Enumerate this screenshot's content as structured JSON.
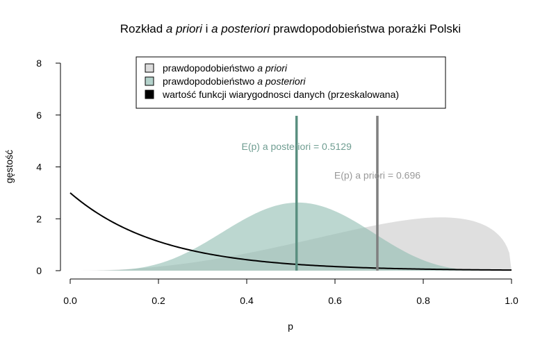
{
  "chart_data": {
    "type": "area",
    "title": {
      "part1": "Rozkład ",
      "part2": "a priori",
      "part3": " i ",
      "part4": "a posteriori",
      "part5": " prawdopodobieństwa porażki Polski"
    },
    "xlabel": "p",
    "ylabel": "gęstość",
    "xlim": [
      0,
      1
    ],
    "ylim": [
      0,
      8
    ],
    "xticks": [
      "0.0",
      "0.2",
      "0.4",
      "0.6",
      "0.8",
      "1.0"
    ],
    "yticks": [
      "0",
      "2",
      "4",
      "6",
      "8"
    ],
    "legend": {
      "placement": "top-center",
      "items": [
        {
          "text_plain": "prawdopodobieństwo ",
          "text_italic": "a priori",
          "color": "#dcdcdc"
        },
        {
          "text_plain": "prawdopodobieństwo ",
          "text_italic": "a posteriori",
          "color": "#b4d2cb"
        },
        {
          "text_plain": "wartość funkcji wiarygodnosci danych (przeskalowana)",
          "text_italic": "",
          "color": "#000000"
        }
      ]
    },
    "series": [
      {
        "distribution": "beta",
        "alpha": 3.28,
        "beta": 1.43,
        "fill": "#d9d9d9",
        "opacity": 0.85
      },
      {
        "distribution": "beta",
        "alpha": 5.8,
        "beta": 5.5,
        "fill": "#8fbcb0",
        "opacity": 0.6
      },
      {
        "distribution": "exponential-decay",
        "y0": 3.0,
        "rate": 4.9,
        "color": "#000000"
      }
    ],
    "vlines": [
      {
        "x": 0.5129,
        "color": "#5a8f80"
      },
      {
        "x": 0.696,
        "color": "#808080"
      }
    ],
    "annotations": [
      {
        "text": "E(p) a posteriori = 0.5129",
        "x": 0.5129,
        "y": 4.65,
        "color": "#6f9d91"
      },
      {
        "text": "E(p) a priori = 0.696",
        "x": 0.696,
        "y": 3.55,
        "color": "#999999"
      }
    ]
  }
}
